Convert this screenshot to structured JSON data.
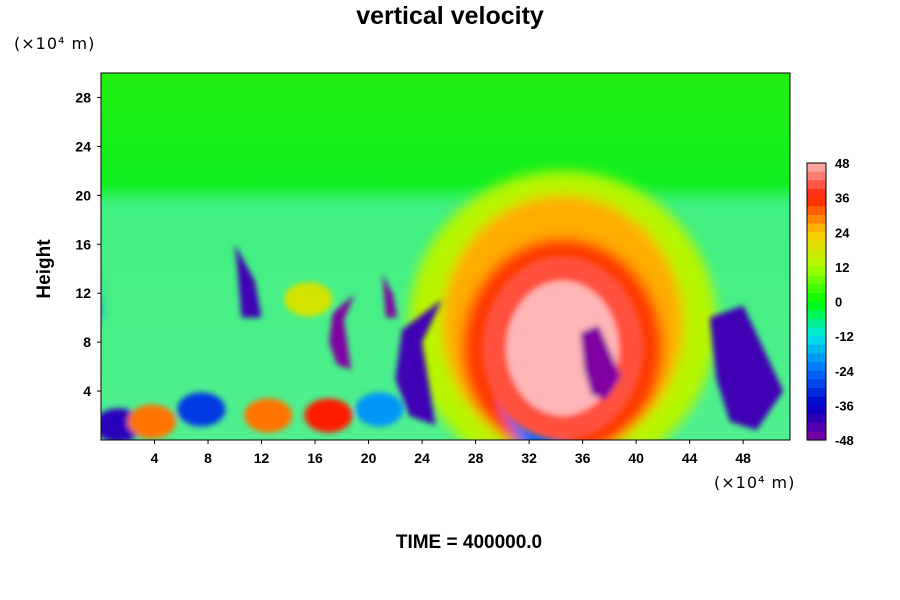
{
  "title": "vertical velocity",
  "y_unit": "(×10⁴ m)",
  "x_unit": "(×10⁴ m)",
  "y_title": "Height",
  "time_label": "TIME = 400000.0",
  "colors": {
    "background": "#00ff00",
    "positive_peak": "#ffb6b6",
    "negative_peak": "#8000a0"
  },
  "chart_data": {
    "type": "heatmap",
    "title": "vertical velocity",
    "xlabel": "",
    "ylabel": "Height",
    "x_unit": "(×10⁴ m)",
    "y_unit": "(×10⁴ m)",
    "xlim": [
      0,
      51.5
    ],
    "ylim": [
      0,
      30
    ],
    "x_ticks": [
      4,
      8,
      12,
      16,
      20,
      24,
      28,
      32,
      36,
      40,
      44,
      48
    ],
    "y_ticks": [
      4,
      8,
      12,
      16,
      20,
      24,
      28
    ],
    "colorbar": {
      "levels": [
        48,
        36,
        24,
        12,
        0,
        -12,
        -24,
        -36,
        -48
      ],
      "min": -48,
      "max": 48
    },
    "features": [
      {
        "name": "main updraft",
        "x": 34.5,
        "y": 7.5,
        "value": 48
      },
      {
        "name": "updraft halo",
        "x": 34.5,
        "y": 10,
        "value": 30
      },
      {
        "name": "downdraft left",
        "x": 11,
        "y": 12.5,
        "value": -48
      },
      {
        "name": "downdraft center",
        "x": 24,
        "y": 7,
        "value": -48
      },
      {
        "name": "downdraft right",
        "x": 48.5,
        "y": 6,
        "value": -48
      },
      {
        "name": "low updraft",
        "x": 17,
        "y": 2,
        "value": 36
      },
      {
        "name": "low updraft 2",
        "x": 12.5,
        "y": 2,
        "value": 30
      }
    ]
  }
}
